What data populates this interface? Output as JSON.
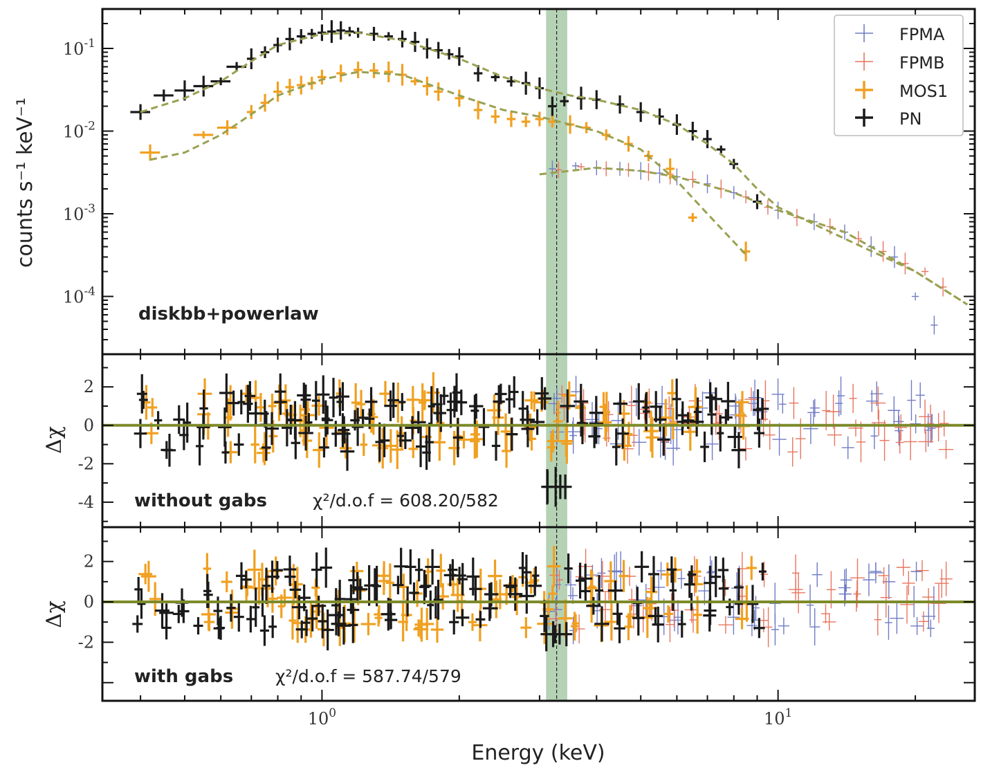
{
  "chart_data": {
    "type": "scatter",
    "x_axis": {
      "label": "Energy (keV)",
      "scale": "log",
      "range": [
        0.33,
        27.0
      ],
      "tick_labels": [
        "10^0",
        "10^1"
      ]
    },
    "legend": {
      "position": "top-right",
      "entries": [
        "FPMA",
        "FPMB",
        "MOS1",
        "PN"
      ]
    },
    "highlight_band": {
      "x_min": 3.1,
      "x_max": 3.45,
      "line_x": 3.27
    },
    "panels": [
      {
        "id": "spectrum",
        "ylabel": "counts s⁻¹ keV⁻¹",
        "yscale": "log",
        "ylim": [
          2e-05,
          0.3
        ],
        "y_tick_labels": [
          "10^-1",
          "10^-2",
          "10^-3",
          "10^-4"
        ],
        "label": "diskbb+powerlaw",
        "series": [
          {
            "name": "PN",
            "color": "#1a1a1a",
            "points": [
              [
                0.4,
                0.017
              ],
              [
                0.45,
                0.027
              ],
              [
                0.5,
                0.031
              ],
              [
                0.55,
                0.035
              ],
              [
                0.6,
                0.04
              ],
              [
                0.65,
                0.06
              ],
              [
                0.7,
                0.075
              ],
              [
                0.75,
                0.09
              ],
              [
                0.8,
                0.11
              ],
              [
                0.85,
                0.13
              ],
              [
                0.9,
                0.14
              ],
              [
                0.95,
                0.15
              ],
              [
                1.0,
                0.155
              ],
              [
                1.05,
                0.16
              ],
              [
                1.1,
                0.165
              ],
              [
                1.15,
                0.16
              ],
              [
                1.2,
                0.155
              ],
              [
                1.3,
                0.15
              ],
              [
                1.4,
                0.14
              ],
              [
                1.5,
                0.13
              ],
              [
                1.6,
                0.12
              ],
              [
                1.7,
                0.1
              ],
              [
                1.8,
                0.095
              ],
              [
                1.9,
                0.085
              ],
              [
                2.0,
                0.08
              ],
              [
                2.2,
                0.05
              ],
              [
                2.4,
                0.045
              ],
              [
                2.6,
                0.04
              ],
              [
                2.8,
                0.038
              ],
              [
                3.0,
                0.033
              ],
              [
                3.2,
                0.02
              ],
              [
                3.4,
                0.023
              ],
              [
                3.7,
                0.025
              ],
              [
                4.0,
                0.024
              ],
              [
                4.5,
                0.021
              ],
              [
                5.0,
                0.017
              ],
              [
                5.5,
                0.015
              ],
              [
                6.0,
                0.012
              ],
              [
                6.5,
                0.01
              ],
              [
                7.0,
                0.008
              ],
              [
                7.5,
                0.006
              ],
              [
                8.0,
                0.004
              ],
              [
                9.0,
                0.0014
              ]
            ]
          },
          {
            "name": "MOS1",
            "color": "#f0a020",
            "points": [
              [
                0.42,
                0.0055
              ],
              [
                0.55,
                0.009
              ],
              [
                0.62,
                0.011
              ],
              [
                0.7,
                0.017
              ],
              [
                0.75,
                0.022
              ],
              [
                0.8,
                0.03
              ],
              [
                0.85,
                0.034
              ],
              [
                0.9,
                0.036
              ],
              [
                0.95,
                0.038
              ],
              [
                1.0,
                0.045
              ],
              [
                1.1,
                0.05
              ],
              [
                1.2,
                0.055
              ],
              [
                1.3,
                0.054
              ],
              [
                1.4,
                0.052
              ],
              [
                1.5,
                0.048
              ],
              [
                1.6,
                0.04
              ],
              [
                1.7,
                0.035
              ],
              [
                1.8,
                0.03
              ],
              [
                2.0,
                0.025
              ],
              [
                2.2,
                0.018
              ],
              [
                2.4,
                0.015
              ],
              [
                2.6,
                0.014
              ],
              [
                2.8,
                0.013
              ],
              [
                3.0,
                0.014
              ],
              [
                3.2,
                0.013
              ],
              [
                3.5,
                0.012
              ],
              [
                3.8,
                0.011
              ],
              [
                4.2,
                0.009
              ],
              [
                4.7,
                0.007
              ],
              [
                5.2,
                0.005
              ],
              [
                5.8,
                0.0035
              ],
              [
                6.5,
                0.0009
              ],
              [
                8.5,
                0.00035
              ]
            ]
          },
          {
            "name": "FPMA",
            "color": "#6f7bc4",
            "points": [
              [
                3.2,
                0.0035
              ],
              [
                3.6,
                0.0038
              ],
              [
                4.0,
                0.0036
              ],
              [
                4.5,
                0.0035
              ],
              [
                5.0,
                0.0033
              ],
              [
                5.5,
                0.0031
              ],
              [
                6.0,
                0.0028
              ],
              [
                7.0,
                0.0023
              ],
              [
                8.0,
                0.0018
              ],
              [
                9.0,
                0.0014
              ],
              [
                10.0,
                0.0011
              ],
              [
                12.0,
                0.0008
              ],
              [
                14.0,
                0.0006
              ],
              [
                16.0,
                0.0004
              ],
              [
                18.0,
                0.0003
              ],
              [
                20.0,
                0.0001
              ],
              [
                22.0,
                4.5e-05
              ]
            ]
          },
          {
            "name": "FPMB",
            "color": "#e8745e",
            "points": [
              [
                3.3,
                0.0034
              ],
              [
                3.7,
                0.0037
              ],
              [
                4.2,
                0.0035
              ],
              [
                4.7,
                0.0034
              ],
              [
                5.2,
                0.0032
              ],
              [
                5.8,
                0.003
              ],
              [
                6.5,
                0.0026
              ],
              [
                7.5,
                0.002
              ],
              [
                8.5,
                0.0016
              ],
              [
                9.5,
                0.0012
              ],
              [
                11.0,
                0.0009
              ],
              [
                13.0,
                0.0007
              ],
              [
                15.0,
                0.0005
              ],
              [
                17.0,
                0.00035
              ],
              [
                19.0,
                0.00025
              ],
              [
                21.0,
                0.0002
              ],
              [
                23.0,
                0.00013
              ]
            ]
          }
        ],
        "models": [
          {
            "name": "PN model",
            "color": "#9aa050",
            "points": [
              [
                0.4,
                0.017
              ],
              [
                0.5,
                0.025
              ],
              [
                0.6,
                0.04
              ],
              [
                0.7,
                0.07
              ],
              [
                0.8,
                0.11
              ],
              [
                1.0,
                0.15
              ],
              [
                1.2,
                0.155
              ],
              [
                1.5,
                0.125
              ],
              [
                2.0,
                0.075
              ],
              [
                2.5,
                0.045
              ],
              [
                3.0,
                0.033
              ],
              [
                3.5,
                0.027
              ],
              [
                4.0,
                0.024
              ],
              [
                5.0,
                0.018
              ],
              [
                6.0,
                0.012
              ],
              [
                7.0,
                0.007
              ],
              [
                8.0,
                0.004
              ],
              [
                9.0,
                0.002
              ],
              [
                10.0,
                0.0012
              ],
              [
                14.0,
                0.0005
              ],
              [
                20.0,
                0.0002
              ],
              [
                26.0,
                8e-05
              ]
            ]
          },
          {
            "name": "MOS1 model",
            "color": "#9aa050",
            "points": [
              [
                0.42,
                0.0045
              ],
              [
                0.5,
                0.0055
              ],
              [
                0.6,
                0.009
              ],
              [
                0.7,
                0.016
              ],
              [
                0.8,
                0.027
              ],
              [
                1.0,
                0.042
              ],
              [
                1.2,
                0.052
              ],
              [
                1.5,
                0.048
              ],
              [
                2.0,
                0.027
              ],
              [
                2.5,
                0.018
              ],
              [
                3.0,
                0.015
              ],
              [
                3.5,
                0.012
              ],
              [
                4.0,
                0.01
              ],
              [
                5.0,
                0.006
              ],
              [
                6.0,
                0.0025
              ],
              [
                7.0,
                0.001
              ],
              [
                8.5,
                0.00032
              ]
            ]
          },
          {
            "name": "NuSTAR model",
            "color": "#9aa050",
            "points": [
              [
                3.0,
                0.003
              ],
              [
                4.0,
                0.0036
              ],
              [
                5.0,
                0.0033
              ],
              [
                6.0,
                0.0028
              ],
              [
                8.0,
                0.0018
              ],
              [
                10.0,
                0.0011
              ],
              [
                14.0,
                0.0006
              ],
              [
                20.0,
                0.0002
              ],
              [
                26.0,
                8e-05
              ]
            ]
          }
        ]
      },
      {
        "id": "residuals-no-gabs",
        "ylabel": "Δχ",
        "yscale": "linear",
        "ylim": [
          -5.3,
          3.7
        ],
        "y_tick_labels": [
          "2",
          "0",
          "-2",
          "-4"
        ],
        "label": "without gabs",
        "stat_prefix": "χ²/d.o.f = ",
        "stat_value": "608.20/582"
      },
      {
        "id": "residuals-gabs",
        "ylabel": "Δχ",
        "yscale": "linear",
        "ylim": [
          -4.9,
          3.7
        ],
        "y_tick_labels": [
          "2",
          "0",
          "-2"
        ],
        "label": "with gabs",
        "stat_prefix": "χ²/d.o.f = ",
        "stat_value": "587.74/579"
      }
    ]
  }
}
